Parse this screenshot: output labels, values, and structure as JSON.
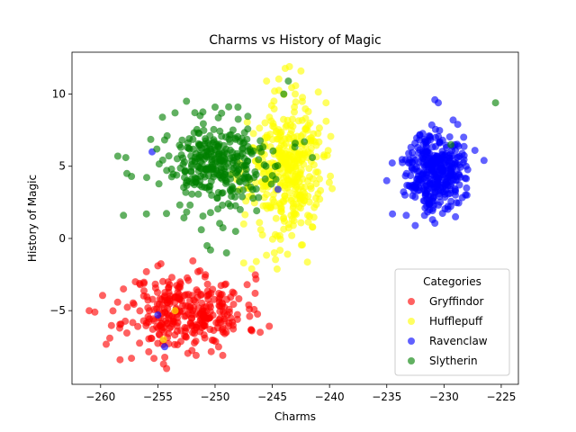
{
  "chart_data": {
    "type": "scatter",
    "title": "Charms vs History of Magic",
    "xlabel": "Charms",
    "ylabel": "History of Magic",
    "xlim": [
      -262.5,
      -223.5
    ],
    "ylim": [
      -10.1,
      12.9
    ],
    "xticks": [
      -260,
      -255,
      -250,
      -245,
      -240,
      -235,
      -230,
      -225
    ],
    "yticks": [
      -5,
      0,
      5,
      10
    ],
    "grid": false,
    "legend": {
      "title": "Categories",
      "placement": "lower-right"
    },
    "series": [
      {
        "name": "Gryffindor",
        "color": "#ff0000",
        "cluster": {
          "center": [
            -252.5,
            -5.1
          ],
          "spread": [
            2.6,
            1.3
          ],
          "count": 320,
          "seed": 11
        },
        "outliers": [
          [
            -261.0,
            -5.0
          ],
          [
            -260.5,
            -5.1
          ],
          [
            -259.2,
            -6.9
          ],
          [
            -258.3,
            -8.4
          ],
          [
            -257.3,
            -8.3
          ],
          [
            -254.5,
            -8.7
          ],
          [
            -249.5,
            -3.9
          ],
          [
            -247.0,
            -4.9
          ],
          [
            -246.5,
            -3.8
          ],
          [
            -247.2,
            -3.2
          ],
          [
            -256.0,
            -2.3
          ],
          [
            -255.0,
            -1.9
          ],
          [
            -251.5,
            -2.3
          ],
          [
            -248.5,
            -5.8
          ],
          [
            -258.0,
            -3.5
          ]
        ]
      },
      {
        "name": "Hufflepuff",
        "color": "#ffff00",
        "cluster": {
          "center": [
            -243.8,
            4.7
          ],
          "spread": [
            1.6,
            2.3
          ],
          "count": 380,
          "seed": 23
        },
        "outliers": [
          [
            -243.5,
            11.9
          ],
          [
            -242.5,
            11.6
          ],
          [
            -240.3,
            9.4
          ],
          [
            -245.5,
            10.9
          ],
          [
            -244.8,
            10.2
          ],
          [
            -247.5,
            -1.7
          ],
          [
            -246.4,
            -1.6
          ],
          [
            -246.8,
            -2.1
          ],
          [
            -243.3,
            0.2
          ],
          [
            -241.5,
            0.8
          ],
          [
            -241.0,
            3.1
          ],
          [
            -247.5,
            1.0
          ],
          [
            -246.0,
            0.6
          ],
          [
            -243.0,
            10.0
          ],
          [
            -253.5,
            -5.0
          ],
          [
            -254.5,
            -7.0
          ]
        ]
      },
      {
        "name": "Ravenclaw",
        "color": "#0000ff",
        "cluster": {
          "center": [
            -230.8,
            4.7
          ],
          "spread": [
            1.2,
            1.3
          ],
          "count": 360,
          "seed": 37
        },
        "outliers": [
          [
            -230.8,
            9.6
          ],
          [
            -230.5,
            9.4
          ],
          [
            -229.2,
            8.2
          ],
          [
            -234.5,
            1.7
          ],
          [
            -233.3,
            1.6
          ],
          [
            -229.0,
            1.5
          ],
          [
            -231.0,
            1.3
          ],
          [
            -235.0,
            4.0
          ],
          [
            -227.3,
            6.1
          ],
          [
            -226.5,
            5.4
          ],
          [
            -228.8,
            7.9
          ],
          [
            -255.5,
            6.0
          ],
          [
            -255.0,
            -5.3
          ],
          [
            -254.4,
            -7.5
          ],
          [
            -244.5,
            3.4
          ],
          [
            -232.3,
            6.3
          ],
          [
            -228.0,
            3.0
          ]
        ]
      },
      {
        "name": "Slytherin",
        "color": "#008000",
        "cluster": {
          "center": [
            -249.6,
            5.0
          ],
          "spread": [
            2.4,
            1.5
          ],
          "count": 320,
          "seed": 53
        },
        "outliers": [
          [
            -258.5,
            5.7
          ],
          [
            -257.8,
            5.6
          ],
          [
            -257.7,
            4.5
          ],
          [
            -257.3,
            4.3
          ],
          [
            -256.0,
            1.7
          ],
          [
            -258.0,
            1.6
          ],
          [
            -252.5,
            9.5
          ],
          [
            -253.5,
            8.7
          ],
          [
            -254.6,
            8.4
          ],
          [
            -251.3,
            8.5
          ],
          [
            -250.0,
            9.1
          ],
          [
            -250.7,
            -0.5
          ],
          [
            -249.0,
            -1.0
          ],
          [
            -250.4,
            -0.8
          ],
          [
            -251.2,
            0.6
          ],
          [
            -244.0,
            10.0
          ],
          [
            -243.6,
            10.9
          ],
          [
            -241.5,
            5.6
          ],
          [
            -242.2,
            6.7
          ],
          [
            -225.5,
            9.4
          ],
          [
            -229.4,
            6.5
          ],
          [
            -243.0,
            6.6
          ],
          [
            -248.0,
            9.1
          ]
        ]
      }
    ]
  }
}
